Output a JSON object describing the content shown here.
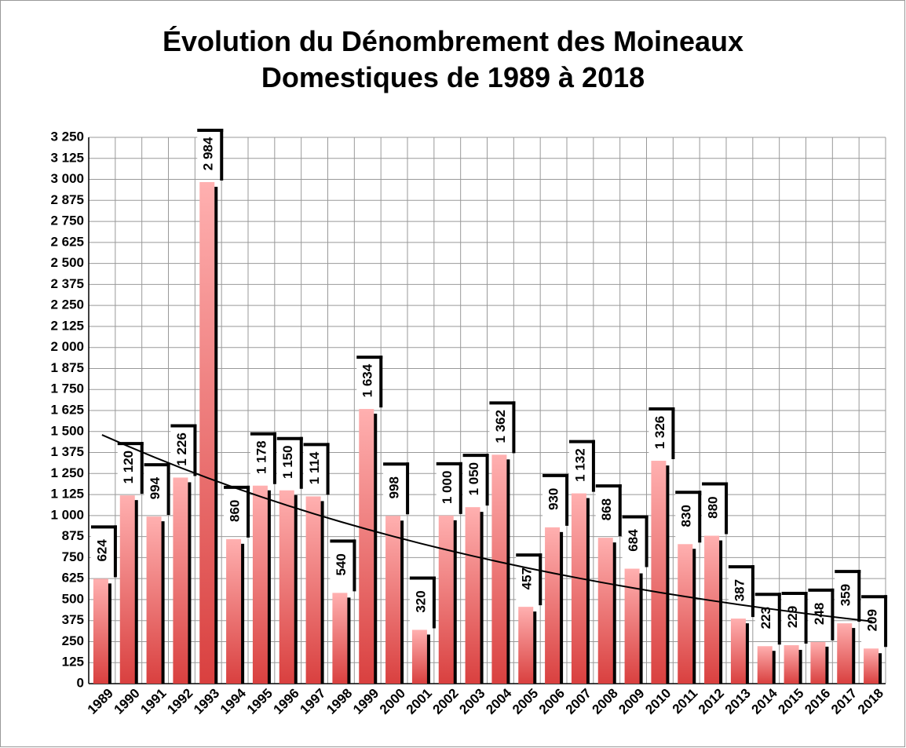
{
  "chart_data": {
    "type": "bar",
    "title": "Évolution du Dénombrement des Moineaux Domestiques de 1989 à 2018",
    "categories": [
      "1989",
      "1990",
      "1991",
      "1992",
      "1993",
      "1994",
      "1995",
      "1996",
      "1997",
      "1998",
      "1999",
      "2000",
      "2001",
      "2002",
      "2003",
      "2004",
      "2005",
      "2006",
      "2007",
      "2008",
      "2009",
      "2010",
      "2011",
      "2012",
      "2013",
      "2014",
      "2015",
      "2016",
      "2017",
      "2018"
    ],
    "values": [
      624,
      1120,
      994,
      1226,
      2984,
      860,
      1178,
      1150,
      1114,
      540,
      1634,
      998,
      320,
      1000,
      1050,
      1362,
      457,
      930,
      1132,
      868,
      684,
      1326,
      830,
      880,
      387,
      223,
      229,
      248,
      359,
      209
    ],
    "value_labels": [
      "624",
      "1 120",
      "994",
      "1 226",
      "2 984",
      "860",
      "1 178",
      "1 150",
      "1 114",
      "540",
      "1 634",
      "998",
      "320",
      "1 000",
      "1 050",
      "1 362",
      "457",
      "930",
      "1 132",
      "868",
      "684",
      "1 326",
      "830",
      "880",
      "387",
      "223",
      "229",
      "248",
      "359",
      "209"
    ],
    "color": "#e85c5c",
    "ylim": [
      0,
      3250
    ],
    "yticks": [
      0,
      125,
      250,
      375,
      500,
      625,
      750,
      875,
      {
        "value": 1000,
        "label": "1 000"
      },
      {
        "value": 1125,
        "label": "1 125"
      },
      {
        "value": 1250,
        "label": "1 250"
      },
      {
        "value": 1375,
        "label": "1 375"
      },
      {
        "value": 1500,
        "label": "1 500"
      },
      {
        "value": 1625,
        "label": "1 625"
      },
      {
        "value": 1750,
        "label": "1 750"
      },
      {
        "value": 1875,
        "label": "1 875"
      },
      {
        "value": 2000,
        "label": "2 000"
      },
      {
        "value": 2125,
        "label": "2 125"
      },
      {
        "value": 2250,
        "label": "2 250"
      },
      {
        "value": 2375,
        "label": "2 375"
      },
      {
        "value": 2500,
        "label": "2 500"
      },
      {
        "value": 2625,
        "label": "2 625"
      },
      {
        "value": 2750,
        "label": "2 750"
      },
      {
        "value": 2875,
        "label": "2 875"
      },
      {
        "value": 3000,
        "label": "3 000"
      },
      {
        "value": 3125,
        "label": "3 125"
      },
      {
        "value": 3250,
        "label": "3 250"
      }
    ],
    "grid": true,
    "trendline": {
      "kind": "exponential",
      "from": 1480,
      "to": 370
    }
  }
}
